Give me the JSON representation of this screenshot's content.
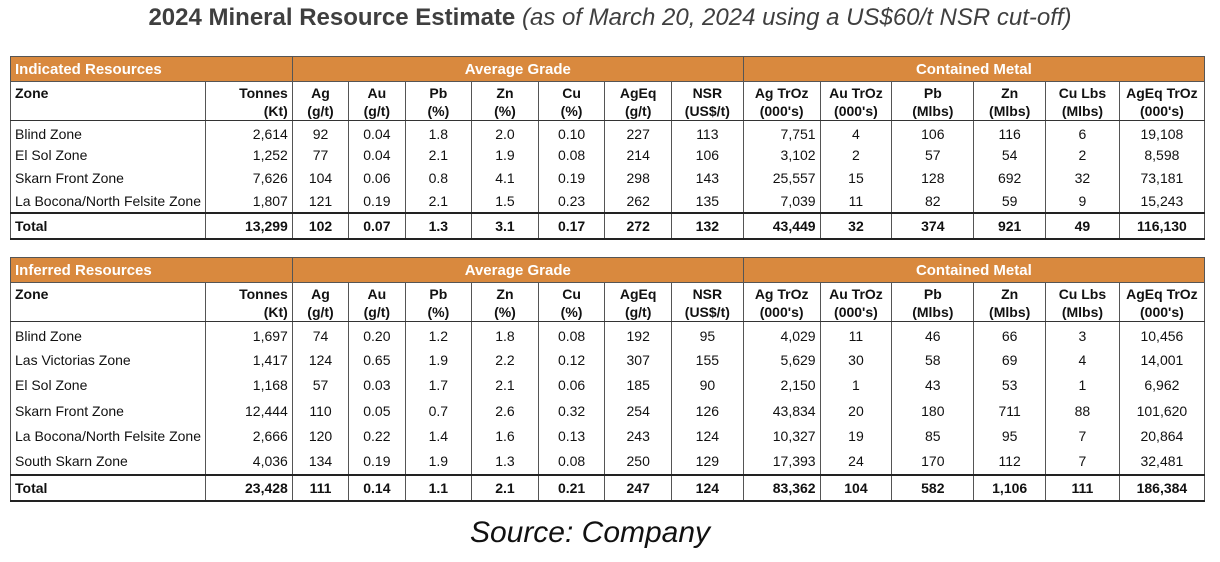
{
  "title": {
    "main": "2024 Mineral Resource Estimate",
    "sub": "(as of March 20, 2024 using a US$60/t NSR cut-off)"
  },
  "bands": {
    "avg_grade": "Average Grade",
    "contained_metal": "Contained Metal"
  },
  "columns": {
    "zone": "Zone",
    "tonnes": [
      "Tonnes",
      "(Kt)"
    ],
    "ag": [
      "Ag",
      "(g/t)"
    ],
    "au": [
      "Au",
      "(g/t)"
    ],
    "pb": [
      "Pb",
      "(%)"
    ],
    "zn": [
      "Zn",
      "(%)"
    ],
    "cu": [
      "Cu",
      "(%)"
    ],
    "ageq": [
      "AgEq",
      "(g/t)"
    ],
    "nsr": [
      "NSR",
      "(US$/t)"
    ],
    "ag_troz": [
      "Ag TrOz",
      "(000's)"
    ],
    "au_troz": [
      "Au TrOz",
      "(000's)"
    ],
    "pb_mlbs": [
      "Pb",
      "(Mlbs)"
    ],
    "zn_mlbs": [
      "Zn",
      "(Mlbs)"
    ],
    "cu_lbs": [
      "Cu Lbs",
      "(Mlbs)"
    ],
    "ageq_troz": [
      "AgEq TrOz",
      "(000's)"
    ]
  },
  "indicated": {
    "label": "Indicated Resources",
    "rows": [
      [
        "Blind Zone",
        "2,614",
        "92",
        "0.04",
        "1.8",
        "2.0",
        "0.10",
        "227",
        "113",
        "7,751",
        "4",
        "106",
        "116",
        "6",
        "19,108"
      ],
      [
        "El Sol Zone",
        "1,252",
        "77",
        "0.04",
        "2.1",
        "1.9",
        "0.08",
        "214",
        "106",
        "3,102",
        "2",
        "57",
        "54",
        "2",
        "8,598"
      ],
      [
        "Skarn Front Zone",
        "7,626",
        "104",
        "0.06",
        "0.8",
        "4.1",
        "0.19",
        "298",
        "143",
        "25,557",
        "15",
        "128",
        "692",
        "32",
        "73,181"
      ],
      [
        "La Bocona/North Felsite Zone",
        "1,807",
        "121",
        "0.19",
        "2.1",
        "1.5",
        "0.23",
        "262",
        "135",
        "7,039",
        "11",
        "82",
        "59",
        "9",
        "15,243"
      ]
    ],
    "total": [
      "Total",
      "13,299",
      "102",
      "0.07",
      "1.3",
      "3.1",
      "0.17",
      "272",
      "132",
      "43,449",
      "32",
      "374",
      "921",
      "49",
      "116,130"
    ]
  },
  "inferred": {
    "label": "Inferred Resources",
    "rows": [
      [
        "Blind Zone",
        "1,697",
        "74",
        "0.20",
        "1.2",
        "1.8",
        "0.08",
        "192",
        "95",
        "4,029",
        "11",
        "46",
        "66",
        "3",
        "10,456"
      ],
      [
        "Las Victorias Zone",
        "1,417",
        "124",
        "0.65",
        "1.9",
        "2.2",
        "0.12",
        "307",
        "155",
        "5,629",
        "30",
        "58",
        "69",
        "4",
        "14,001"
      ],
      [
        "El Sol Zone",
        "1,168",
        "57",
        "0.03",
        "1.7",
        "2.1",
        "0.06",
        "185",
        "90",
        "2,150",
        "1",
        "43",
        "53",
        "1",
        "6,962"
      ],
      [
        "Skarn Front Zone",
        "12,444",
        "110",
        "0.05",
        "0.7",
        "2.6",
        "0.32",
        "254",
        "126",
        "43,834",
        "20",
        "180",
        "711",
        "88",
        "101,620"
      ],
      [
        "La Bocona/North Felsite Zone",
        "2,666",
        "120",
        "0.22",
        "1.4",
        "1.6",
        "0.13",
        "243",
        "124",
        "10,327",
        "19",
        "85",
        "95",
        "7",
        "20,864"
      ],
      [
        "South Skarn Zone",
        "4,036",
        "134",
        "0.19",
        "1.9",
        "1.3",
        "0.08",
        "250",
        "129",
        "17,393",
        "24",
        "170",
        "112",
        "7",
        "32,481"
      ]
    ],
    "total": [
      "Total",
      "23,428",
      "111",
      "0.14",
      "1.1",
      "2.1",
      "0.21",
      "247",
      "124",
      "83,362",
      "104",
      "582",
      "1,106",
      "111",
      "186,384"
    ]
  },
  "source": "Source: Company",
  "colors": {
    "band": "#d9893e",
    "band_text": "#ffffff",
    "title_text": "#3f3f3f"
  }
}
